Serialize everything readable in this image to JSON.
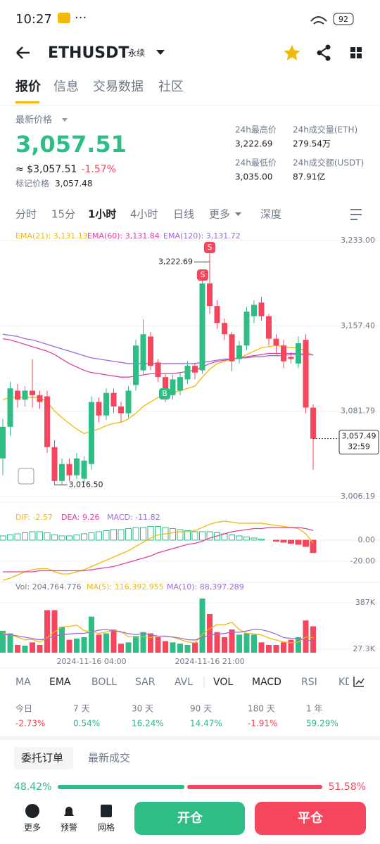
{
  "status": {
    "time": "10:27",
    "battery": "92"
  },
  "header": {
    "symbol": "ETHUSDT",
    "tag": "永续"
  },
  "tabs": {
    "items": [
      "报价",
      "信息",
      "交易数据",
      "社区"
    ],
    "selected": 0
  },
  "price": {
    "label": "最新价格",
    "last": "3,057.51",
    "approx": "≈ $3,057.51",
    "change": "-1.57%",
    "mark_label": "标记价格",
    "mark": "3,057.48"
  },
  "stats": [
    {
      "label": "24h最高价",
      "value": "3,222.69"
    },
    {
      "label": "24h成交量(ETH)",
      "value": "279.54万"
    },
    {
      "label": "24h最低价",
      "value": "3,035.00"
    },
    {
      "label": "24h成交额(USDT)",
      "value": "87.91亿"
    }
  ],
  "intervals": {
    "items": [
      "分时",
      "15分",
      "1小时",
      "4小时",
      "日线",
      "更多",
      "深度"
    ],
    "selected": 2
  },
  "chart_data": {
    "type": "candlestick",
    "up_color": "#2ebd85",
    "down_color": "#f6465d",
    "x": [
      null,
      null,
      null,
      null,
      null,
      null,
      null,
      null,
      null,
      null,
      null,
      null,
      "2024-11-16 04:00",
      null,
      null,
      null,
      null,
      null,
      null,
      null,
      null,
      null,
      null,
      null,
      null,
      null,
      null,
      null,
      "2024-11-16 21:00",
      null,
      null,
      null,
      null,
      null,
      null,
      null,
      null,
      null,
      null,
      null,
      null,
      null,
      null
    ],
    "price": {
      "ylim": [
        3006.19,
        3233
      ],
      "yticks": [
        {
          "value": 3233,
          "label": "3,233.00"
        },
        {
          "value": 3157.4,
          "label": "3,157.40"
        },
        {
          "value": 3081.79,
          "label": "3,081.79"
        },
        {
          "value": 3006.19,
          "label": "3,006.19"
        }
      ],
      "grid": true,
      "open": [
        3040,
        3068,
        3100,
        3092,
        3100,
        3096,
        3095,
        3050,
        3020,
        3035,
        3025,
        3022,
        3035,
        3090,
        3078,
        3098,
        3086,
        3080,
        3105,
        3118,
        3148,
        3125,
        3112,
        3096,
        3100,
        3110,
        3122,
        3118,
        3195,
        3175,
        3160,
        3150,
        3128,
        3140,
        3166,
        3178,
        3166,
        3146,
        3140,
        3130,
        3124,
        3145,
        3085
      ],
      "high": [
        3075,
        3108,
        3106,
        3104,
        3128,
        3100,
        3100,
        3056,
        3040,
        3040,
        3045,
        3042,
        3095,
        3094,
        3102,
        3102,
        3090,
        3104,
        3145,
        3163,
        3152,
        3128,
        3115,
        3114,
        3116,
        3126,
        3125,
        3200,
        3222.69,
        3180,
        3164,
        3152,
        3144,
        3174,
        3180,
        3183,
        3168,
        3150,
        3145,
        3134,
        3148,
        3150,
        3088
      ],
      "low": [
        3025,
        3060,
        3085,
        3086,
        3085,
        3084,
        3045,
        3016.5,
        3017,
        3020,
        3022,
        3018,
        3030,
        3072,
        3074,
        3080,
        3072,
        3076,
        3100,
        3114,
        3118,
        3108,
        3090,
        3092,
        3096,
        3106,
        3110,
        3115,
        3168,
        3155,
        3145,
        3117,
        3124,
        3136,
        3160,
        3162,
        3140,
        3132,
        3120,
        3124,
        3120,
        3080,
        3030
      ],
      "close": [
        3068,
        3102,
        3092,
        3100,
        3096,
        3090,
        3050,
        3020,
        3035,
        3025,
        3040,
        3038,
        3090,
        3078,
        3098,
        3086,
        3080,
        3100,
        3140,
        3150,
        3122,
        3112,
        3096,
        3110,
        3112,
        3122,
        3116,
        3195,
        3175,
        3160,
        3150,
        3126,
        3140,
        3170,
        3176,
        3166,
        3146,
        3140,
        3126,
        3128,
        3142,
        3085,
        3057.49
      ],
      "ema": [
        {
          "legend": "EMA(21): 3,131.13",
          "color": "#f0b90b",
          "values": [
            3092,
            3094,
            3094,
            3094,
            3094,
            3094,
            3090,
            3082,
            3076,
            3071,
            3066,
            3062,
            3064,
            3066,
            3069,
            3071,
            3072,
            3075,
            3080,
            3086,
            3090,
            3094,
            3096,
            3098,
            3100,
            3102,
            3104,
            3112,
            3119,
            3124,
            3126,
            3128,
            3129,
            3132,
            3135,
            3138,
            3139,
            3140,
            3139,
            3138,
            3138,
            3135,
            3131.13
          ]
        },
        {
          "legend": "EMA(60): 3,131.84",
          "color": "#e040a0",
          "values": [
            3146,
            3145,
            3143,
            3141,
            3139,
            3137,
            3135,
            3132,
            3128,
            3124,
            3121,
            3118,
            3116,
            3115,
            3114,
            3113,
            3112,
            3112,
            3113,
            3114,
            3115,
            3115,
            3115,
            3115,
            3116,
            3117,
            3118,
            3121,
            3124,
            3126,
            3127,
            3128,
            3129,
            3130,
            3131,
            3132,
            3133,
            3133,
            3133,
            3133,
            3133,
            3132,
            3131.84
          ]
        },
        {
          "legend": "EMA(120): 3,131.72",
          "color": "#9c6bd6",
          "values": [
            3150,
            3149,
            3148,
            3146,
            3145,
            3143,
            3141,
            3139,
            3137,
            3135,
            3133,
            3131,
            3129,
            3128,
            3127,
            3126,
            3125,
            3124,
            3124,
            3124,
            3124,
            3124,
            3124,
            3124,
            3124,
            3124,
            3124,
            3125,
            3126,
            3127,
            3128,
            3128,
            3129,
            3129,
            3130,
            3130,
            3131,
            3131,
            3131,
            3132,
            3132,
            3132,
            3131.72
          ]
        }
      ],
      "annotations": {
        "high_label": "3,222.69",
        "low_label": "3,016.50",
        "current_label": "3,057.49",
        "countdown": "32:59",
        "markers": [
          "S",
          "S",
          "B"
        ]
      }
    },
    "macd": {
      "ylim": [
        -40,
        33.3
      ],
      "yticks": [
        {
          "value": 0,
          "label": "0.00"
        },
        {
          "value": -20,
          "label": "-20.00"
        }
      ],
      "dif": {
        "legend": "DIF: -2.57",
        "color": "#f0b90b",
        "values": [
          -38,
          -36,
          -33,
          -30,
          -28,
          -27,
          -27,
          -30,
          -32,
          -32,
          -30,
          -28,
          -25,
          -22,
          -19,
          -16,
          -13,
          -10,
          -6,
          -2,
          2,
          5,
          6,
          7,
          8,
          8,
          9,
          12,
          15,
          17,
          18,
          17,
          16,
          16,
          16,
          16,
          15,
          14,
          13,
          12,
          11,
          6,
          -2.57
        ]
      },
      "dea": {
        "legend": "DEA: 9.26",
        "color": "#e040a0",
        "values": [
          -30,
          -30,
          -30,
          -30,
          -30,
          -29,
          -29,
          -29,
          -29,
          -29,
          -29,
          -29,
          -28,
          -27,
          -26,
          -25,
          -23,
          -21,
          -19,
          -17,
          -15,
          -12,
          -10,
          -8,
          -6,
          -4,
          -3,
          -1,
          2,
          4,
          6,
          8,
          9,
          10,
          11,
          11,
          12,
          12,
          12,
          12,
          12,
          11,
          9.26
        ]
      },
      "hist": {
        "legend": "MACD: -11.82",
        "color": "#9c6bd6",
        "values": [
          4,
          5,
          6,
          7,
          8,
          8,
          7,
          5,
          4,
          4,
          5,
          6,
          7,
          8,
          9,
          10,
          10,
          11,
          12,
          12,
          13,
          13,
          12,
          11,
          10,
          9,
          8,
          8,
          8,
          7,
          6,
          5,
          4,
          3,
          2,
          1,
          0,
          -1,
          -2,
          -3,
          -4,
          -6,
          -11.82
        ]
      }
    },
    "volume": {
      "ylim": [
        0,
        480000
      ],
      "yticks": [
        {
          "value": 387000,
          "label": "387K"
        },
        {
          "value": 27300,
          "label": "27.3K"
        }
      ],
      "legend": "Vol: 204,764.776",
      "values": [
        170000,
        150000,
        60000,
        55000,
        80000,
        60000,
        330000,
        330000,
        200000,
        100000,
        110000,
        120000,
        280000,
        140000,
        150000,
        180000,
        70000,
        80000,
        130000,
        160000,
        150000,
        120000,
        90000,
        80000,
        70000,
        60000,
        80000,
        420000,
        300000,
        160000,
        120000,
        180000,
        140000,
        150000,
        140000,
        80000,
        60000,
        60000,
        80000,
        100000,
        120000,
        250000,
        204764.776
      ],
      "ma": [
        {
          "legend": "MA(5): 116,392.955",
          "color": "#f0b90b",
          "values": [
            150000,
            140000,
            120000,
            100000,
            103000,
            81000,
            117000,
            163000,
            200000,
            204000,
            214000,
            172000,
            162000,
            150000,
            160000,
            174000,
            164000,
            124000,
            122000,
            124000,
            118000,
            128000,
            130000,
            120000,
            102000,
            84000,
            76000,
            142000,
            186000,
            218000,
            216000,
            236000,
            180000,
            150000,
            146000,
            138000,
            114000,
            98000,
            84000,
            76000,
            84000,
            122000,
            116392.955
          ]
        },
        {
          "legend": "MA(10): 88,397.289",
          "color": "#9c6bd6",
          "values": [
            140000,
            140000,
            130000,
            120000,
            110000,
            100000,
            110000,
            130000,
            140000,
            145000,
            150000,
            150000,
            160000,
            175000,
            180000,
            170000,
            160000,
            148000,
            140000,
            149000,
            141000,
            128000,
            127000,
            122000,
            113000,
            101000,
            98000,
            119000,
            136000,
            144000,
            149000,
            160000,
            158000,
            168000,
            182000,
            178000,
            165000,
            144000,
            117000,
            111000,
            109000,
            101000,
            88397.289
          ]
        }
      ]
    }
  },
  "indicators": {
    "items": [
      "MA",
      "EMA",
      "BOLL",
      "SAR",
      "AVL",
      "VOL",
      "MACD",
      "RSI",
      "KDJ"
    ],
    "selected": [
      1,
      5,
      6
    ]
  },
  "performance": [
    {
      "label": "今日",
      "value": "-2.73%"
    },
    {
      "label": "7 天",
      "value": "0.54%"
    },
    {
      "label": "30 天",
      "value": "16.24%"
    },
    {
      "label": "90 天",
      "value": "14.47%"
    },
    {
      "label": "180 天",
      "value": "-1.91%"
    },
    {
      "label": "1 年",
      "value": "59.29%"
    }
  ],
  "orders": {
    "tabs": [
      "委托订单",
      "最新成交"
    ],
    "buy": 48.42,
    "buy_label": "48.42%",
    "sell": 51.58,
    "sell_label": "51.58%"
  },
  "nav": {
    "items": [
      "更多",
      "预警",
      "网格"
    ],
    "open": "开仓",
    "close": "平仓"
  }
}
